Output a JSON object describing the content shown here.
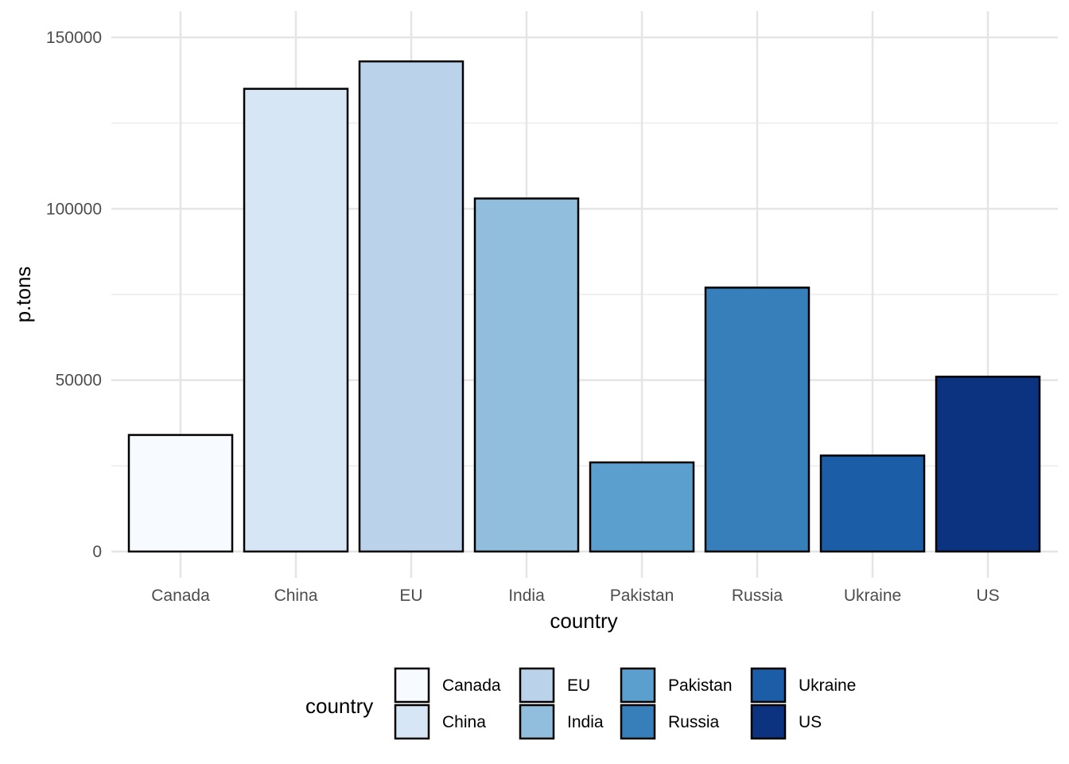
{
  "chart_data": {
    "type": "bar",
    "xlabel": "country",
    "ylabel": "p.tons",
    "categories": [
      "Canada",
      "China",
      "EU",
      "India",
      "Pakistan",
      "Russia",
      "Ukraine",
      "US"
    ],
    "values": [
      34000,
      135000,
      143000,
      103000,
      26000,
      77000,
      28000,
      51000
    ],
    "colors": [
      "#F7FBFF",
      "#D6E6F4",
      "#BBD2EB",
      "#90BEDC",
      "#5B9FCE",
      "#377FBB",
      "#1C5DA7",
      "#0B3380"
    ],
    "ylim": [
      0,
      150000
    ],
    "yticks": [
      "0",
      "50000",
      "100000",
      "150000"
    ],
    "grid": true,
    "legend": {
      "title": "country",
      "position": "bottom",
      "items": [
        "Canada",
        "China",
        "EU",
        "India",
        "Pakistan",
        "Russia",
        "Ukraine",
        "US"
      ]
    }
  }
}
